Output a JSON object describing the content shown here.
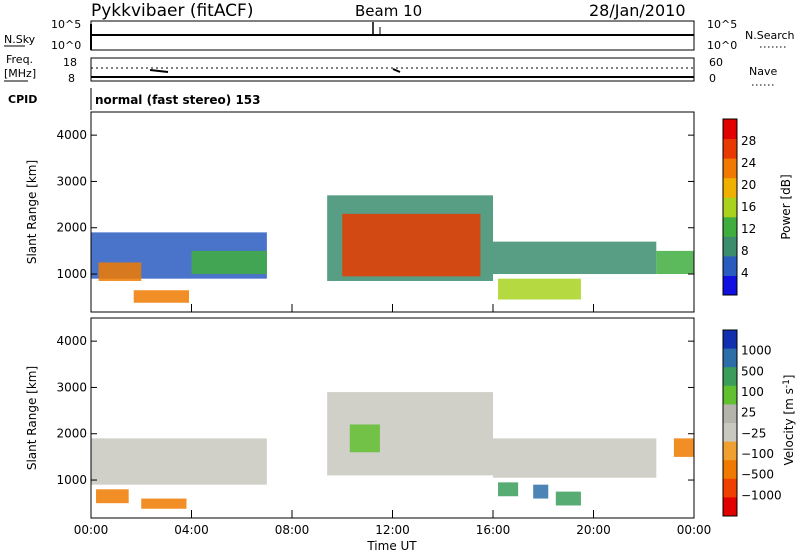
{
  "header": {
    "station": "Pykkvibaer (fitACF)",
    "beam": "Beam 10",
    "date": "28/Jan/2010"
  },
  "strips": {
    "nsky_label": "N.Sky",
    "nsky_ticks": [
      "10^5",
      "10^0"
    ],
    "nsearch_label": "N.Search",
    "nsearch_ticks": [
      "10^5",
      "10^0"
    ],
    "freq_label_1": "Freq.",
    "freq_label_2": "[MHz]",
    "freq_ticks": [
      "18",
      "8"
    ],
    "nave_label": "Nave",
    "nave_ticks": [
      "60",
      "0"
    ],
    "cpid_label": "CPID",
    "cpid_value": "normal (fast stereo) 153"
  },
  "colors": {
    "power_scale": [
      "#1010e0",
      "#2a5cc0",
      "#3b8d6e",
      "#3fae3f",
      "#a8d21e",
      "#f0b000",
      "#f07a00",
      "#e83a00",
      "#e00000"
    ],
    "velocity_scale": [
      "#e00000",
      "#f04000",
      "#f07a00",
      "#f0a030",
      "#c8c8c0",
      "#b4b4ac",
      "#60c030",
      "#3a9e5a",
      "#2b6ea8",
      "#1030b0"
    ]
  },
  "chart_data": [
    {
      "type": "heatmap",
      "title": "Power [dB]",
      "xlabel": "",
      "ylabel": "Slant Range [km]",
      "x_range_hours": [
        0,
        24
      ],
      "ylim": [
        180,
        4500
      ],
      "x_ticks": [
        "00:00",
        "04:00",
        "08:00",
        "12:00",
        "16:00",
        "20:00",
        "00:00"
      ],
      "y_ticks": [
        1000,
        2000,
        3000,
        4000
      ],
      "colorbar_label": "Power [dB]",
      "colorbar_ticks": [
        "4",
        "8",
        "12",
        "16",
        "20",
        "24",
        "28"
      ],
      "regions": [
        {
          "t_start": 0.0,
          "t_end": 7.0,
          "range_low": 900,
          "range_high": 1900,
          "value_db": 6
        },
        {
          "t_start": 0.3,
          "t_end": 2.0,
          "range_low": 850,
          "range_high": 1250,
          "value_db": 24
        },
        {
          "t_start": 1.7,
          "t_end": 3.9,
          "range_low": 380,
          "range_high": 650,
          "value_db": 24
        },
        {
          "t_start": 4.0,
          "t_end": 7.0,
          "range_low": 1000,
          "range_high": 1500,
          "value_db": 12
        },
        {
          "t_start": 9.4,
          "t_end": 16.0,
          "range_low": 850,
          "range_high": 2700,
          "value_db": 8
        },
        {
          "t_start": 10.0,
          "t_end": 15.5,
          "range_low": 950,
          "range_high": 2300,
          "value_db": 26
        },
        {
          "t_start": 16.0,
          "t_end": 22.5,
          "range_low": 1000,
          "range_high": 1700,
          "value_db": 10
        },
        {
          "t_start": 16.2,
          "t_end": 19.5,
          "range_low": 450,
          "range_high": 900,
          "value_db": 16
        },
        {
          "t_start": 22.5,
          "t_end": 24.0,
          "range_low": 1000,
          "range_high": 1500,
          "value_db": 14
        }
      ]
    },
    {
      "type": "heatmap",
      "title": "Velocity [m s-1]",
      "xlabel": "Time UT",
      "ylabel": "Slant Range [km]",
      "x_range_hours": [
        0,
        24
      ],
      "ylim": [
        180,
        4500
      ],
      "x_ticks": [
        "00:00",
        "04:00",
        "08:00",
        "12:00",
        "16:00",
        "20:00",
        "00:00"
      ],
      "y_ticks": [
        1000,
        2000,
        3000,
        4000
      ],
      "colorbar_label": "Velocity",
      "colorbar_unit": "[m s",
      "colorbar_unit_exp": "-1",
      "colorbar_unit_end": "]",
      "colorbar_ticks": [
        "1000",
        "500",
        "100",
        "25",
        "−25",
        "−100",
        "−500",
        "−1000"
      ],
      "regions": [
        {
          "t_start": 0.0,
          "t_end": 7.0,
          "range_low": 900,
          "range_high": 1900,
          "value_ms": 0
        },
        {
          "t_start": 0.2,
          "t_end": 1.5,
          "range_low": 500,
          "range_high": 800,
          "value_ms": -300
        },
        {
          "t_start": 2.0,
          "t_end": 3.8,
          "range_low": 380,
          "range_high": 600,
          "value_ms": -300
        },
        {
          "t_start": 9.4,
          "t_end": 16.0,
          "range_low": 1100,
          "range_high": 2900,
          "value_ms": 0
        },
        {
          "t_start": 10.3,
          "t_end": 11.5,
          "range_low": 1600,
          "range_high": 2200,
          "value_ms": 60
        },
        {
          "t_start": 16.0,
          "t_end": 22.5,
          "range_low": 1050,
          "range_high": 1900,
          "value_ms": 0
        },
        {
          "t_start": 16.2,
          "t_end": 17.0,
          "range_low": 650,
          "range_high": 950,
          "value_ms": 300
        },
        {
          "t_start": 17.6,
          "t_end": 18.2,
          "range_low": 600,
          "range_high": 900,
          "value_ms": 800
        },
        {
          "t_start": 18.5,
          "t_end": 19.5,
          "range_low": 450,
          "range_high": 750,
          "value_ms": 200
        },
        {
          "t_start": 23.2,
          "t_end": 24.0,
          "range_low": 1500,
          "range_high": 1900,
          "value_ms": -400
        }
      ]
    }
  ]
}
